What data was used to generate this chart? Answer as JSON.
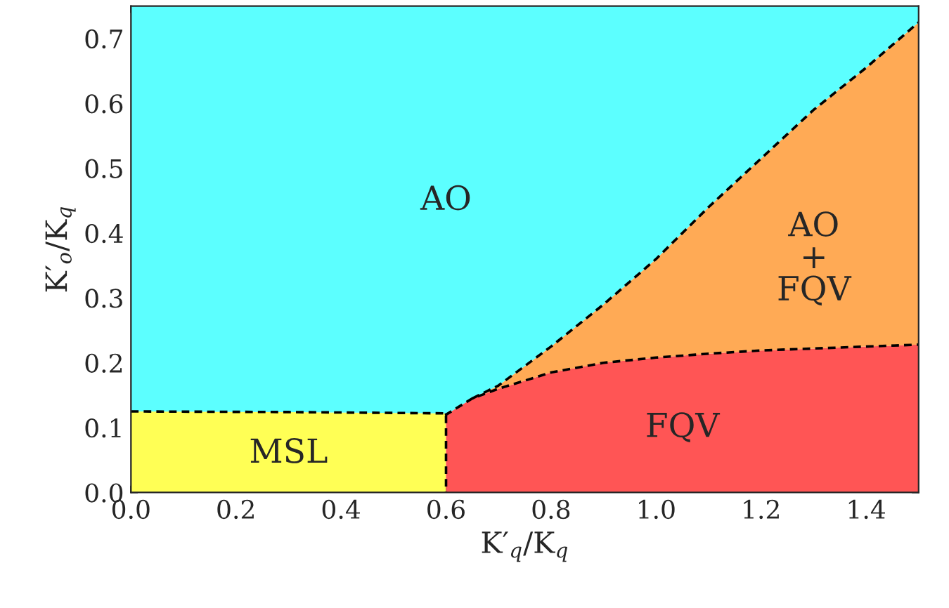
{
  "chart_data": {
    "type": "area",
    "stacked": true,
    "xlabel": "K′$_{q}$/K$_{q}$",
    "ylabel": "K′$_{o}$/K$_{q}$",
    "xlim": [
      0,
      1.5
    ],
    "ylim": [
      0,
      0.75
    ],
    "xticks": [
      {
        "value": 0,
        "label": "0.0"
      },
      0.2,
      0.4,
      0.6,
      0.8,
      {
        "value": 1,
        "label": "1.0"
      },
      1.2,
      1.4
    ],
    "yticks": [
      {
        "value": 0,
        "label": "0.0"
      },
      0.1,
      0.2,
      0.3,
      0.4,
      0.5,
      0.6,
      0.7
    ],
    "grid": false,
    "legend": false,
    "x": [
      0,
      0.3,
      0.6,
      0.6,
      0.65,
      0.7,
      0.8,
      0.9,
      1.0,
      1.1,
      1.2,
      1.3,
      1.4,
      1.5
    ],
    "series": [
      {
        "color": "#ffff55",
        "line_style": "dashed",
        "values": [
          0.125,
          0.124,
          0.122,
          0,
          0,
          0,
          0,
          0,
          0,
          0,
          0,
          0,
          0,
          0
        ]
      },
      {
        "color": "#ff5555",
        "line_style": "dashed",
        "values": [
          0,
          0,
          0,
          0.12,
          0.145,
          0.16,
          0.185,
          0.2,
          0.208,
          0.214,
          0.219,
          0.222,
          0.225,
          0.228
        ]
      },
      {
        "color": "#ffaa55",
        "line_style": "dashed",
        "values": [
          0,
          0,
          0,
          0,
          0,
          0.005,
          0.04,
          0.09,
          0.152,
          0.226,
          0.296,
          0.368,
          0.43,
          0.497
        ]
      },
      {
        "color": "#5cffff",
        "values": [
          0.625,
          0.626,
          0.628,
          0.63,
          0.605,
          0.585,
          0.525,
          0.46,
          0.39,
          0.31,
          0.235,
          0.16,
          0.095,
          0.025
        ]
      }
    ],
    "annotations": [
      "AO",
      "AO\n+\nFQV",
      "FQV",
      "MSL"
    ]
  }
}
